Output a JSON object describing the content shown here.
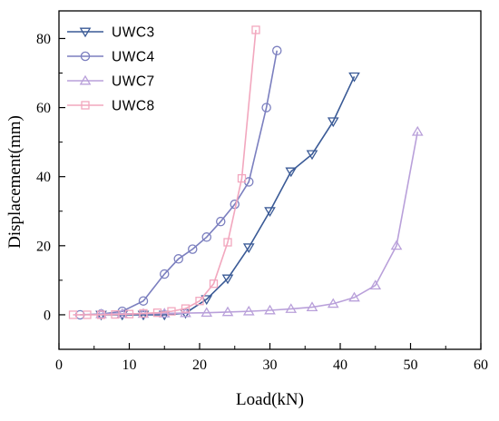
{
  "chart_data": {
    "type": "line",
    "xlabel": "Load(kN)",
    "ylabel": "Displacement(mm)",
    "xlim": [
      0,
      60
    ],
    "ylim": [
      -10,
      88
    ],
    "xticks": [
      0,
      10,
      20,
      30,
      40,
      50,
      60
    ],
    "yticks": [
      0,
      20,
      40,
      60,
      80
    ],
    "grid": false,
    "legend_position": "top-left",
    "series": [
      {
        "name": "UWC3",
        "marker": "triangle-down",
        "color": "#3a5a96",
        "x": [
          6,
          9,
          12,
          15,
          18,
          21,
          24,
          27,
          30,
          33,
          36,
          39,
          42
        ],
        "y": [
          0,
          0,
          0,
          0,
          0.5,
          4.5,
          10.5,
          19.5,
          30,
          41.5,
          46.5,
          56,
          69
        ]
      },
      {
        "name": "UWC4",
        "marker": "circle",
        "color": "#7b7fbf",
        "x": [
          3,
          6,
          9,
          12,
          15,
          17,
          19,
          21,
          23,
          25,
          27,
          29.5,
          31
        ],
        "y": [
          0,
          0.2,
          1,
          4,
          11.8,
          16.2,
          19,
          22.5,
          27,
          32,
          38.5,
          60,
          76.5
        ]
      },
      {
        "name": "UWC7",
        "marker": "triangle-up",
        "color": "#b9a0da",
        "x": [
          6,
          9,
          12,
          15,
          18,
          21,
          24,
          27,
          30,
          33,
          36,
          39,
          42,
          45,
          48,
          51
        ],
        "y": [
          0.2,
          0.3,
          0.3,
          0.4,
          0.5,
          0.6,
          0.8,
          1,
          1.3,
          1.7,
          2.2,
          3.2,
          5,
          8.5,
          20,
          53
        ]
      },
      {
        "name": "UWC8",
        "marker": "square",
        "color": "#f2a7be",
        "x": [
          2,
          4,
          6,
          8,
          10,
          12,
          14,
          16,
          18,
          20,
          22,
          24,
          26,
          28
        ],
        "y": [
          0,
          0,
          0,
          0.1,
          0.2,
          0.4,
          0.6,
          1,
          1.8,
          4,
          9,
          21,
          39.5,
          82.5
        ]
      }
    ]
  }
}
